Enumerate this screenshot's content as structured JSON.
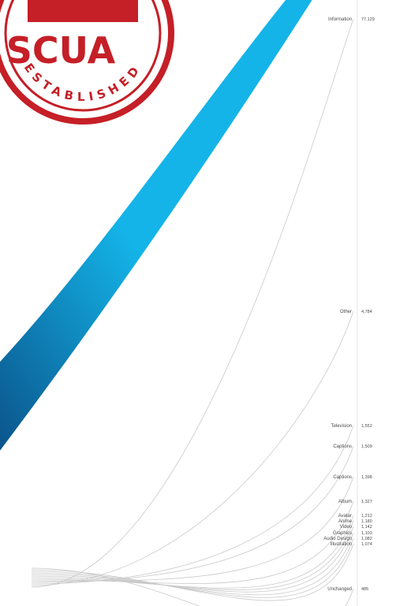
{
  "stamp": {
    "main_text": "SCUA",
    "ring_text": "ESTABLISHED"
  },
  "colors": {
    "flow_light": "#14b4e8",
    "flow_dark": "#0a4f86",
    "link": "#c9c9c9",
    "stamp": "#c51f27"
  },
  "nodes": [
    {
      "label": "Information",
      "value": "77,129"
    },
    {
      "label": "Other",
      "value": "4,784"
    },
    {
      "label": "Television",
      "value": "1,552"
    },
    {
      "label": "Captions",
      "value": "1,509"
    },
    {
      "label": "Captions",
      "value": "1,398"
    },
    {
      "label": "Album",
      "value": "1,327"
    },
    {
      "label": "Avatar",
      "value": "1,212"
    },
    {
      "label": "Anime",
      "value": "1,180"
    },
    {
      "label": "Video",
      "value": "1,142"
    },
    {
      "label": "Graphics",
      "value": "1,103"
    },
    {
      "label": "Audio Design",
      "value": "1,082"
    },
    {
      "label": "Illustration",
      "value": "1,074"
    },
    {
      "label": "Unchanged",
      "value": "485"
    }
  ]
}
